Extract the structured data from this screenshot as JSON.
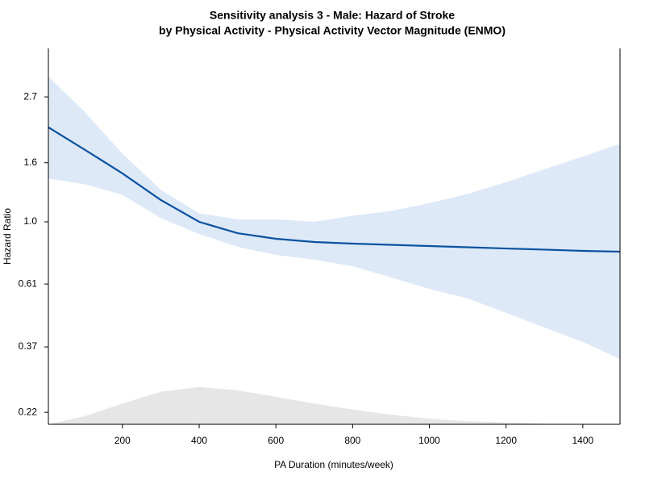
{
  "chart_data": {
    "type": "line",
    "title": "Sensitivity analysis 3 - Male: Hazard of Stroke",
    "subtitle": "by Physical Activity - Physical Activity Vector Magnitude (ENMO)",
    "x_label": "PA Duration (minutes/week)",
    "y_label": "Hazard Ratio",
    "y_scale": "log",
    "xlim": [
      7,
      1497
    ],
    "ylim": [
      0.2,
      3.97
    ],
    "xticks": [
      200,
      400,
      600,
      800,
      1000,
      1200,
      1400
    ],
    "yticks": [
      0.22,
      0.37,
      0.61,
      {
        "value": 1.0,
        "label": "1.0"
      },
      1.6,
      2.7
    ],
    "x": [
      7,
      100,
      200,
      300,
      400,
      500,
      600,
      700,
      800,
      900,
      1000,
      1100,
      1200,
      1300,
      1400,
      1497
    ],
    "values": [
      2.12,
      1.78,
      1.47,
      1.19,
      1.0,
      0.914,
      0.874,
      0.852,
      0.841,
      0.833,
      0.825,
      0.817,
      0.809,
      0.802,
      0.794,
      0.789
    ],
    "upper": [
      3.17,
      2.41,
      1.72,
      1.29,
      1.07,
      1.02,
      1.02,
      1.0,
      1.05,
      1.09,
      1.16,
      1.25,
      1.37,
      1.52,
      1.68,
      1.86
    ],
    "lower": [
      1.41,
      1.35,
      1.24,
      1.03,
      0.908,
      0.82,
      0.769,
      0.74,
      0.703,
      0.643,
      0.587,
      0.544,
      0.485,
      0.432,
      0.385,
      0.336
    ],
    "density": [
      0.2,
      0.213,
      0.236,
      0.259,
      0.269,
      0.262,
      0.249,
      0.236,
      0.225,
      0.216,
      0.209,
      0.205,
      0.203,
      0.201,
      0.2,
      0.2
    ],
    "color": "#0b52a0",
    "band_color": "#dde9f7",
    "density_color": "#e6e6e6"
  }
}
